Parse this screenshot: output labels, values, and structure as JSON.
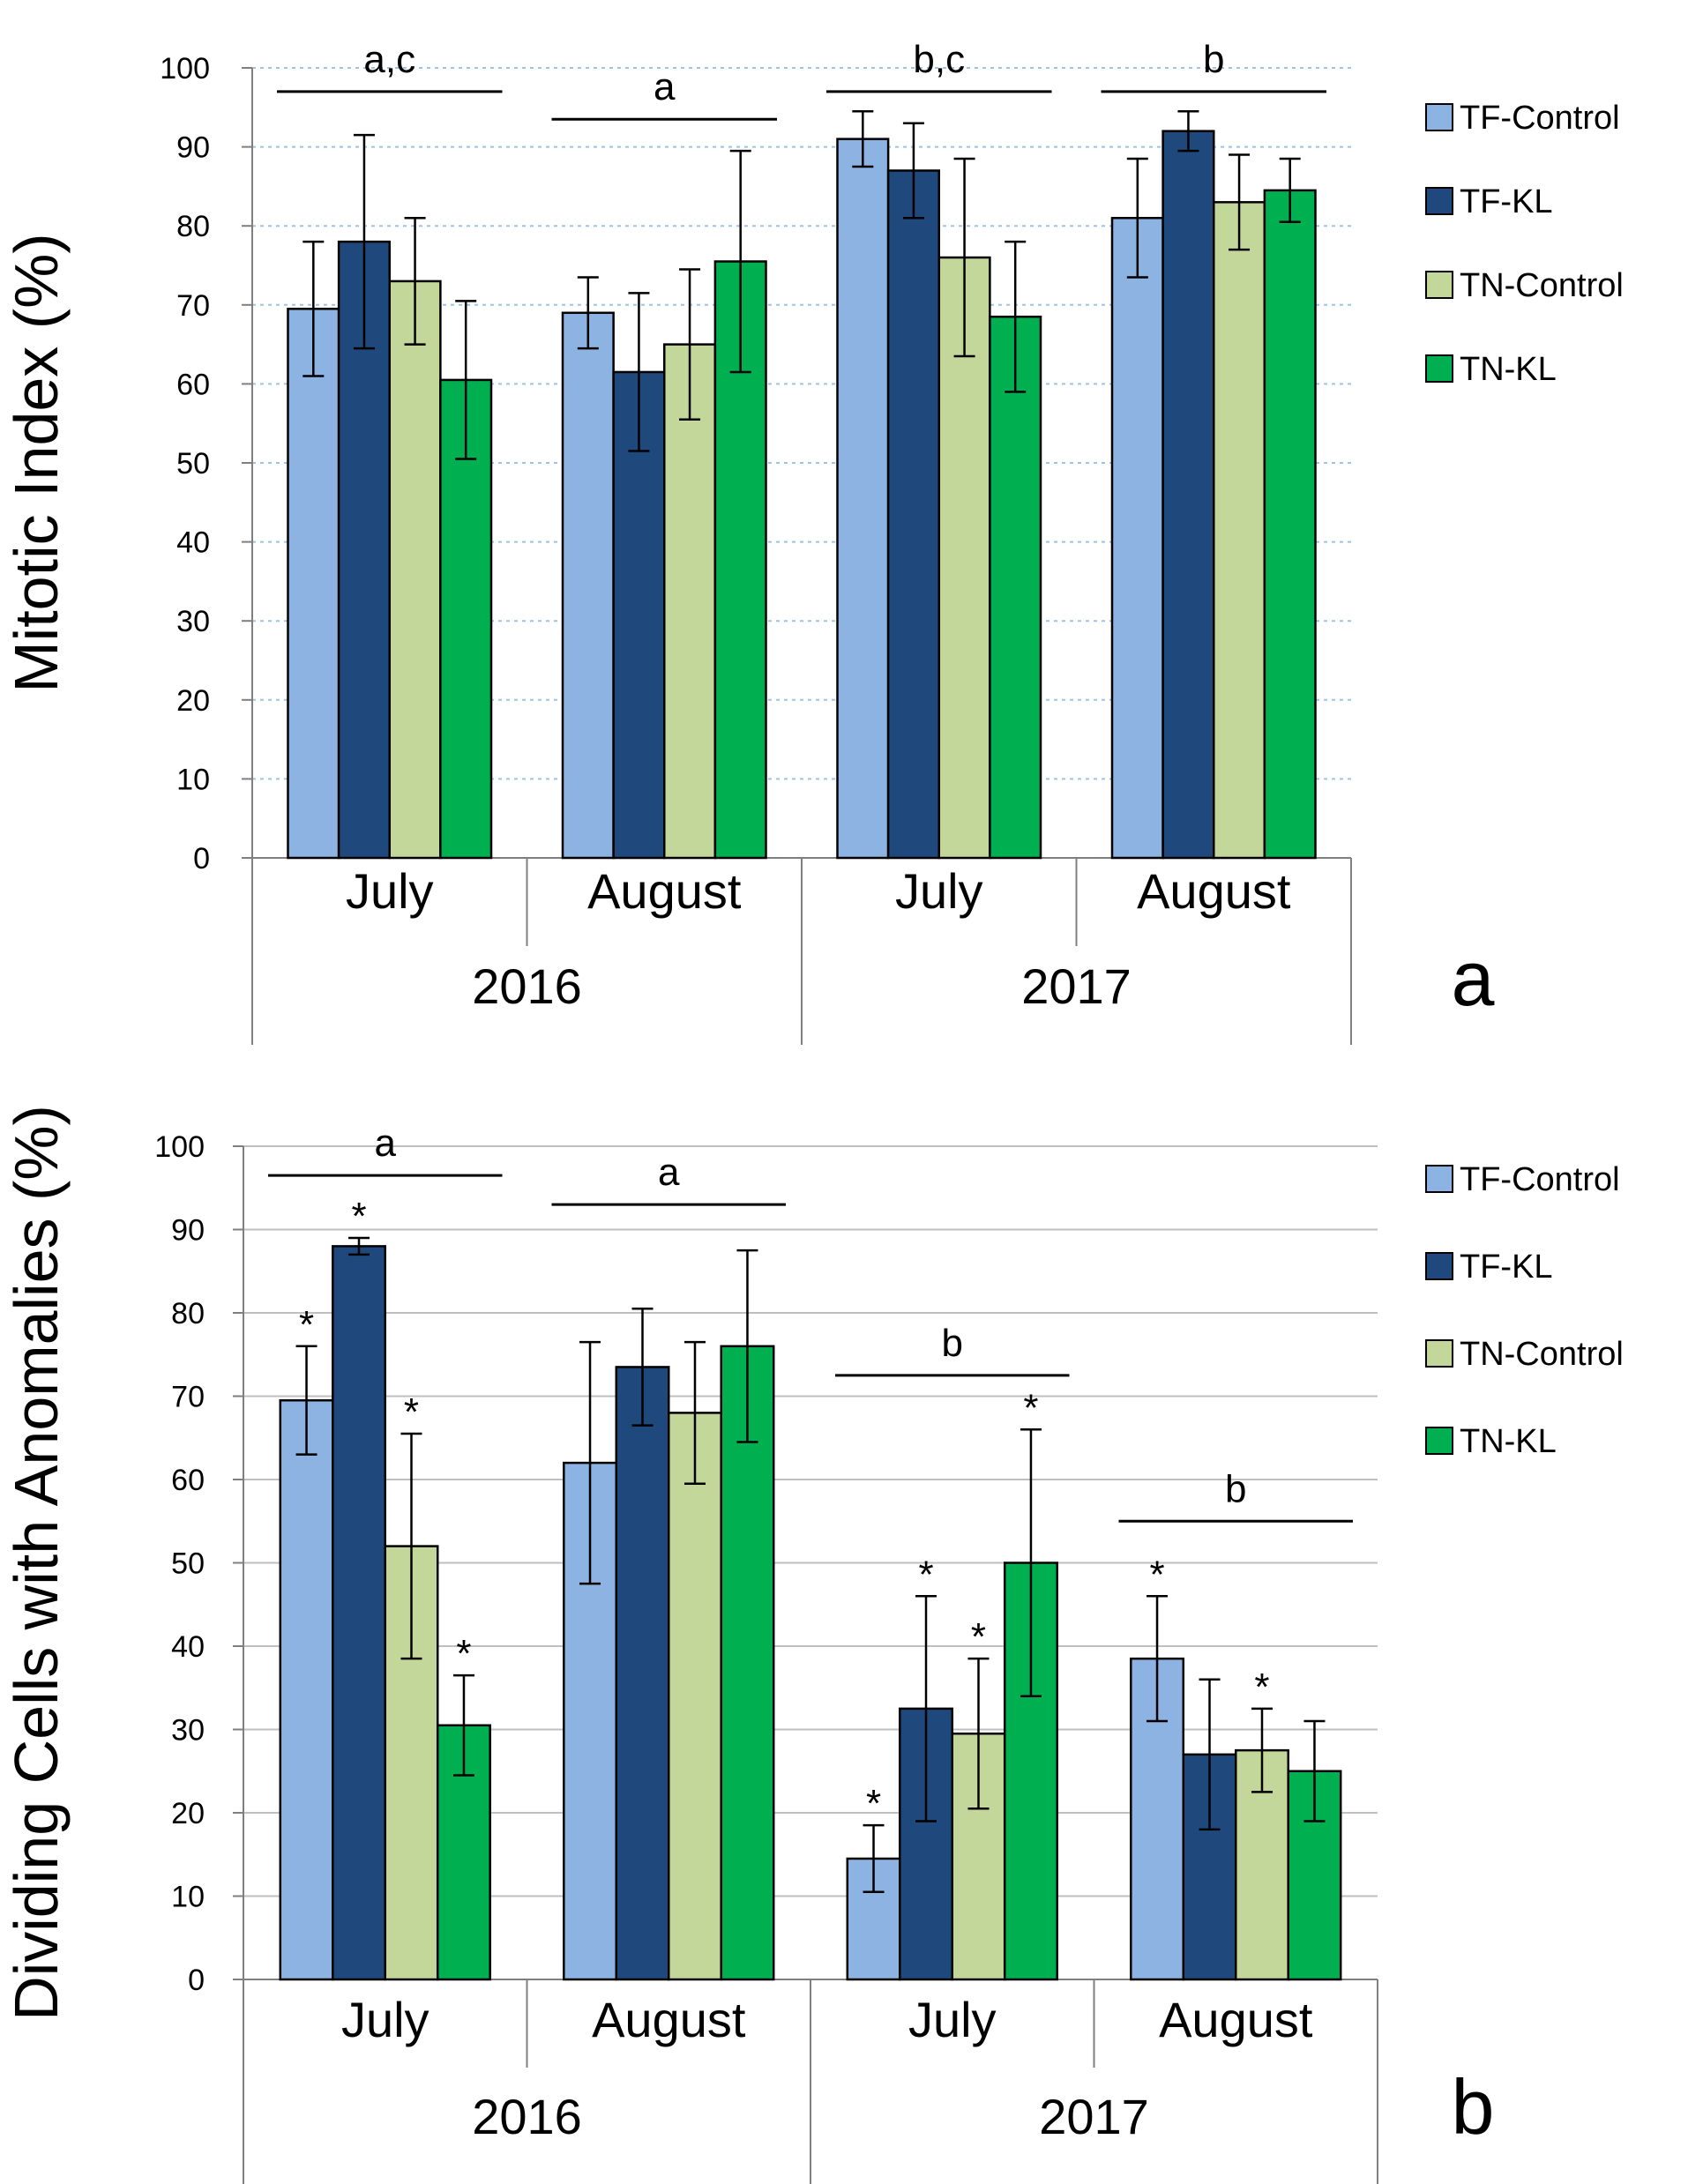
{
  "colors": {
    "TF-Control": "#8db3e2",
    "TF-KL": "#1f497d",
    "TN-Control": "#c4d79b",
    "TN-KL": "#00b050",
    "grid_a": "#9dc3e6",
    "grid_b": "#bfbfbf"
  },
  "chart_data": [
    {
      "type": "bar",
      "panel_label": "a",
      "ylabel": "Mitotic Index (%)",
      "ylim": [
        0,
        100
      ],
      "yticks": [
        "0",
        "10",
        "20",
        "30",
        "40",
        "50",
        "60",
        "70",
        "80",
        "90",
        "100"
      ],
      "categories": [
        "July",
        "August",
        "July",
        "August"
      ],
      "groups": [
        {
          "label": "2016",
          "span": [
            0,
            1
          ]
        },
        {
          "label": "2017",
          "span": [
            2,
            3
          ]
        }
      ],
      "legend": {
        "position": "right"
      },
      "grid": true,
      "series": [
        {
          "name": "TF-Control",
          "values": [
            69.5,
            69,
            91,
            81
          ],
          "errors": [
            8.5,
            4.5,
            3.5,
            7.5
          ]
        },
        {
          "name": "TF-KL",
          "values": [
            78,
            61.5,
            87,
            92
          ],
          "errors": [
            13.5,
            10,
            6,
            2.5
          ]
        },
        {
          "name": "TN-Control",
          "values": [
            73,
            65,
            76,
            83
          ],
          "errors": [
            8,
            9.5,
            12.5,
            6
          ]
        },
        {
          "name": "TN-KL",
          "values": [
            60.5,
            75.5,
            68.5,
            84.5
          ],
          "errors": [
            10,
            14,
            9.5,
            4
          ]
        }
      ],
      "brackets": [
        {
          "label": "a,c",
          "from": 0,
          "to": 0,
          "y": 97
        },
        {
          "label": "a",
          "from": 1,
          "to": 1,
          "y": 93.5
        },
        {
          "label": "b,c",
          "from": 2,
          "to": 2,
          "y": 97
        },
        {
          "label": "b",
          "from": 3,
          "to": 3,
          "y": 97
        }
      ],
      "asterisks": []
    },
    {
      "type": "bar",
      "panel_label": "b",
      "ylabel": "Dividing Cells with Anomalies (%)",
      "ylim": [
        0,
        100
      ],
      "yticks": [
        "0",
        "10",
        "20",
        "30",
        "40",
        "50",
        "60",
        "70",
        "80",
        "90",
        "100"
      ],
      "categories": [
        "July",
        "August",
        "July",
        "August"
      ],
      "groups": [
        {
          "label": "2016",
          "span": [
            0,
            1
          ]
        },
        {
          "label": "2017",
          "span": [
            2,
            3
          ]
        }
      ],
      "legend": {
        "position": "right"
      },
      "grid": true,
      "series": [
        {
          "name": "TF-Control",
          "values": [
            69.5,
            62,
            14.5,
            38.5
          ],
          "errors": [
            6.5,
            14.5,
            4,
            7.5
          ]
        },
        {
          "name": "TF-KL",
          "values": [
            88,
            73.5,
            32.5,
            27
          ],
          "errors": [
            1,
            7,
            13.5,
            9
          ]
        },
        {
          "name": "TN-Control",
          "values": [
            52,
            68,
            29.5,
            27.5
          ],
          "errors": [
            13.5,
            8.5,
            9,
            5
          ]
        },
        {
          "name": "TN-KL",
          "values": [
            30.5,
            76,
            50,
            25
          ],
          "errors": [
            6,
            11.5,
            16,
            6
          ]
        }
      ],
      "brackets": [
        {
          "label": "a",
          "from": 0,
          "to": 0,
          "y": 96.5
        },
        {
          "label": "a",
          "from": 1,
          "to": 1,
          "y": 93
        },
        {
          "label": "b",
          "from": 2,
          "to": 2,
          "y": 72.5
        },
        {
          "label": "b",
          "from": 3,
          "to": 3,
          "y": 55
        }
      ],
      "asterisks": [
        {
          "category": 0,
          "series": 0,
          "text": "*"
        },
        {
          "category": 0,
          "series": 1,
          "text": "*"
        },
        {
          "category": 0,
          "series": 2,
          "text": "*"
        },
        {
          "category": 0,
          "series": 3,
          "text": "*"
        },
        {
          "category": 2,
          "series": 0,
          "text": "*"
        },
        {
          "category": 2,
          "series": 1,
          "text": "*"
        },
        {
          "category": 2,
          "series": 2,
          "text": "*"
        },
        {
          "category": 2,
          "series": 3,
          "text": "*"
        },
        {
          "category": 3,
          "series": 0,
          "text": "*"
        },
        {
          "category": 3,
          "series": 2,
          "text": "*"
        }
      ]
    }
  ]
}
